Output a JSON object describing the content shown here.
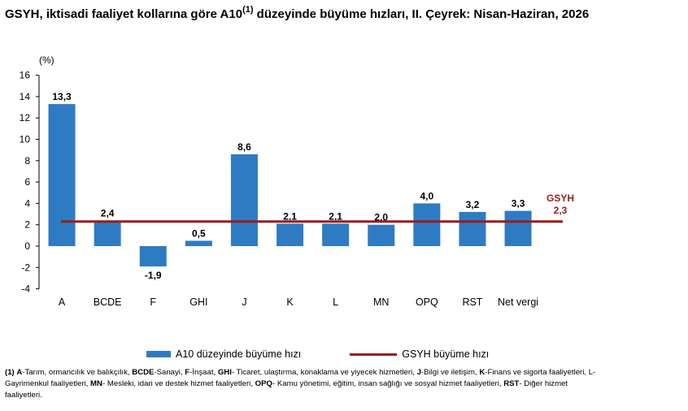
{
  "title": {
    "text_before": "GSYH, iktisadi faaliyet kollarına göre A10",
    "sup": "(1)",
    "text_after": " düzeyinde büyüme hızları, II. Çeyrek: Nisan-Haziran, 2026"
  },
  "colors": {
    "bar": "#2e7bc4",
    "line": "#9b1c1c"
  },
  "chart_data": {
    "type": "bar",
    "ylabel": "(%)",
    "ylim": [
      -4,
      16
    ],
    "yticks": [
      16,
      14,
      12,
      10,
      8,
      6,
      4,
      2,
      0,
      -2,
      -4
    ],
    "categories": [
      "A",
      "BCDE",
      "F",
      "GHI",
      "J",
      "K",
      "L",
      "MN",
      "OPQ",
      "RST",
      "Net vergi"
    ],
    "series": [
      {
        "name": "A10 düzeyinde büyüme hızı",
        "type": "bar",
        "values": [
          13.3,
          2.4,
          -1.9,
          0.5,
          8.6,
          2.1,
          2.1,
          2.0,
          4.0,
          3.2,
          3.3
        ],
        "labels": [
          "13,3",
          "2,4",
          "-1,9",
          "0,5",
          "8,6",
          "2,1",
          "2,1",
          "2,0",
          "4,0",
          "3,2",
          "3,3"
        ]
      },
      {
        "name": "GSYH büyüme hızı",
        "type": "line",
        "value": 2.3
      }
    ],
    "line_label": {
      "name": "GSYH",
      "value": "2,3"
    },
    "grid": false,
    "legend_position": "bottom"
  },
  "legend": {
    "bar": "A10 düzeyinde büyüme hızı",
    "line": "GSYH büyüme hızı"
  },
  "footnote": {
    "n": "(1)",
    "a": "A",
    "a_t": "-Tarım, ormancılık ve balıkçılık, ",
    "bcde": "BCDE",
    "bcde_t": "-Sanayi, ",
    "f": "F",
    "f_t": "-İnşaat, ",
    "ghi": "GHI",
    "ghi_t": "- Ticaret, ulaştırma, konaklama ve yiyecek hizmetleri, ",
    "j": "J",
    "j_t": "-Bilgi ve iletişim, ",
    "k": "K",
    "k_t": "-Finans ve sigorta faaliyetleri, L-Gayrimenkul faaliyetleri, ",
    "mn": "MN",
    "mn_t": "- Mesleki, idari ve destek hizmet faaliyetleri, ",
    "opq": "OPQ",
    "opq_t": "- Kamu yönetimi, eğitim, insan sağlığı ve sosyal hizmet faaliyetleri, ",
    "rst": "RST",
    "rst_t": "- Diğer hizmet faaliyetleri."
  }
}
